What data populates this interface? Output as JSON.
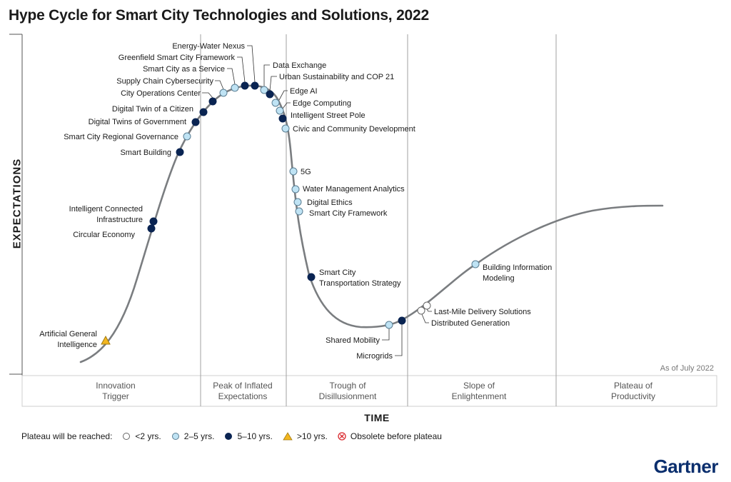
{
  "title": "Hype Cycle for Smart City Technologies and Solutions, 2022",
  "y_axis_label": "EXPECTATIONS",
  "x_axis_label": "TIME",
  "as_of": "As of July 2022",
  "phases": [
    {
      "lines": [
        "Innovation",
        "Trigger"
      ]
    },
    {
      "lines": [
        "Peak of Inflated",
        "Expectations"
      ]
    },
    {
      "lines": [
        "Trough of",
        "Disillusionment"
      ]
    },
    {
      "lines": [
        "Slope of",
        "Enlightenment"
      ]
    },
    {
      "lines": [
        "Plateau of",
        "Productivity"
      ]
    }
  ],
  "legend": {
    "title": "Plateau will be reached:",
    "items": [
      {
        "label": "<2 yrs.",
        "category": "lt2"
      },
      {
        "label": "2–5 yrs.",
        "category": "2to5"
      },
      {
        "label": "5–10 yrs.",
        "category": "5to10"
      },
      {
        "label": ">10 yrs.",
        "category": "gt10"
      },
      {
        "label": "Obsolete before plateau",
        "category": "obsolete"
      }
    ]
  },
  "colors": {
    "lt2": "#ffffff",
    "2to5": "#bfe3f4",
    "5to10": "#0a2452",
    "gt10": "#f3b61f",
    "obsolete": "#d9262b",
    "curve": "#7a7d80",
    "phase_line": "#9a9a9a",
    "brand": "#0a2e6d"
  },
  "technologies": [
    {
      "name": "Artificial General Intelligence",
      "lines": [
        "Artificial General",
        "Intelligence"
      ],
      "category": "gt10"
    },
    {
      "name": "Circular Economy",
      "lines": [
        "Circular Economy"
      ],
      "category": "5to10"
    },
    {
      "name": "Intelligent Connected Infrastructure",
      "lines": [
        "Intelligent Connected",
        "Infrastructure"
      ],
      "category": "5to10"
    },
    {
      "name": "Smart Building",
      "lines": [
        "Smart Building"
      ],
      "category": "5to10"
    },
    {
      "name": "Smart City Regional Governance",
      "lines": [
        "Smart City Regional Governance"
      ],
      "category": "2to5"
    },
    {
      "name": "Digital Twins of Government",
      "lines": [
        "Digital Twins of Government"
      ],
      "category": "5to10"
    },
    {
      "name": "Digital Twin of a Citizen",
      "lines": [
        "Digital Twin of a Citizen"
      ],
      "category": "5to10"
    },
    {
      "name": "City Operations Center",
      "lines": [
        "City Operations Center"
      ],
      "category": "5to10"
    },
    {
      "name": "Supply Chain Cybersecurity",
      "lines": [
        "Supply Chain Cybersecurity"
      ],
      "category": "2to5"
    },
    {
      "name": "Smart City as a Service",
      "lines": [
        "Smart City as a Service"
      ],
      "category": "2to5"
    },
    {
      "name": "Greenfield Smart City Framework",
      "lines": [
        "Greenfield Smart City Framework"
      ],
      "category": "5to10"
    },
    {
      "name": "Energy-Water Nexus",
      "lines": [
        "Energy-Water Nexus"
      ],
      "category": "5to10"
    },
    {
      "name": "Data Exchange",
      "lines": [
        "Data Exchange"
      ],
      "category": "2to5"
    },
    {
      "name": "Urban Sustainability and COP 21",
      "lines": [
        "Urban Sustainability and COP 21"
      ],
      "category": "5to10"
    },
    {
      "name": "Edge AI",
      "lines": [
        "Edge AI"
      ],
      "category": "2to5"
    },
    {
      "name": "Edge Computing",
      "lines": [
        "Edge Computing"
      ],
      "category": "2to5"
    },
    {
      "name": "Intelligent Street Pole",
      "lines": [
        "Intelligent Street Pole"
      ],
      "category": "5to10"
    },
    {
      "name": "Civic and Community Development",
      "lines": [
        "Civic and Community Development"
      ],
      "category": "2to5"
    },
    {
      "name": "5G",
      "lines": [
        "5G"
      ],
      "category": "2to5"
    },
    {
      "name": "Water Management Analytics",
      "lines": [
        "Water Management Analytics"
      ],
      "category": "2to5"
    },
    {
      "name": "Digital Ethics",
      "lines": [
        "Digital Ethics"
      ],
      "category": "2to5"
    },
    {
      "name": "Smart City Framework",
      "lines": [
        "Smart City Framework"
      ],
      "category": "2to5"
    },
    {
      "name": "Smart City Transportation Strategy",
      "lines": [
        "Smart City",
        "Transportation Strategy"
      ],
      "category": "5to10"
    },
    {
      "name": "Shared Mobility",
      "lines": [
        "Shared Mobility"
      ],
      "category": "2to5"
    },
    {
      "name": "Microgrids",
      "lines": [
        "Microgrids"
      ],
      "category": "5to10"
    },
    {
      "name": "Distributed Generation",
      "lines": [
        "Distributed Generation"
      ],
      "category": "lt2"
    },
    {
      "name": "Last-Mile Delivery Solutions",
      "lines": [
        "Last-Mile Delivery Solutions"
      ],
      "category": "lt2"
    },
    {
      "name": "Building Information Modeling",
      "lines": [
        "Building Information",
        "Modeling"
      ],
      "category": "2to5"
    }
  ],
  "brand": "Gartner"
}
